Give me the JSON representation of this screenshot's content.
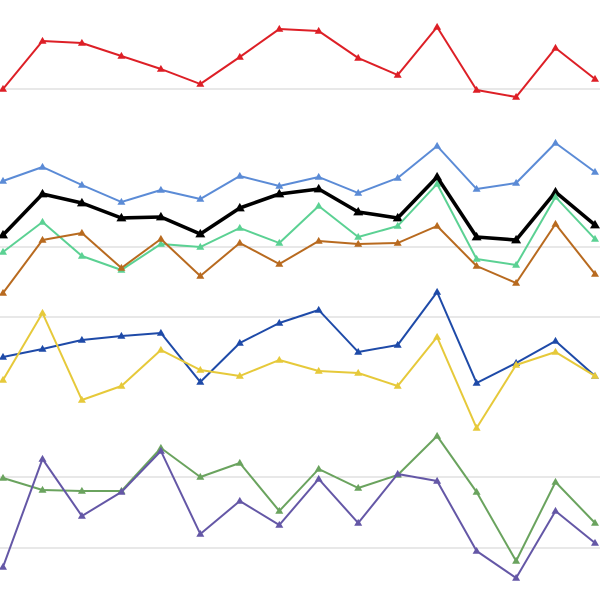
{
  "chart_data": {
    "type": "line",
    "title": "",
    "xlabel": "",
    "ylabel": "",
    "grid": true,
    "legend": "none",
    "marker": "triangle",
    "x": [
      1,
      2,
      3,
      4,
      5,
      6,
      7,
      8,
      9,
      10,
      11,
      12,
      13,
      14,
      15,
      16
    ],
    "xlim": [
      1,
      16
    ],
    "ylim": [
      0,
      600
    ],
    "y_inverted": true,
    "gridlines": [
      89,
      247,
      317,
      477,
      548
    ],
    "series": [
      {
        "color": "#dd1f26",
        "bold": false,
        "values": [
          89,
          41,
          43,
          56,
          69,
          84,
          57,
          29,
          31,
          58,
          75,
          27,
          90,
          97,
          48,
          79
        ]
      },
      {
        "color": "#5b8bd6",
        "bold": false,
        "values": [
          181,
          167,
          185,
          202,
          190,
          199,
          176,
          186,
          177,
          193,
          178,
          146,
          189,
          183,
          143,
          172
        ]
      },
      {
        "color": "#000000",
        "bold": true,
        "values": [
          235,
          194,
          203,
          218,
          217,
          234,
          208,
          194,
          189,
          212,
          218,
          177,
          237,
          240,
          192,
          225
        ]
      },
      {
        "color": "#5bd193",
        "bold": false,
        "values": [
          252,
          222,
          256,
          270,
          244,
          247,
          228,
          243,
          206,
          237,
          226,
          184,
          259,
          265,
          197,
          239
        ]
      },
      {
        "color": "#b86a1f",
        "bold": false,
        "values": [
          293,
          240,
          233,
          268,
          239,
          276,
          243,
          264,
          241,
          244,
          243,
          226,
          266,
          283,
          224,
          274
        ]
      },
      {
        "color": "#1e4aa8",
        "bold": false,
        "values": [
          357,
          349,
          340,
          336,
          333,
          382,
          343,
          323,
          310,
          352,
          345,
          292,
          383,
          363,
          341,
          376
        ]
      },
      {
        "color": "#e6c93a",
        "bold": false,
        "values": [
          380,
          313,
          400,
          386,
          350,
          370,
          376,
          360,
          371,
          373,
          386,
          337,
          428,
          365,
          352,
          376
        ]
      },
      {
        "color": "#6aa35e",
        "bold": false,
        "values": [
          478,
          490,
          491,
          491,
          448,
          477,
          463,
          511,
          469,
          488,
          475,
          436,
          492,
          561,
          482,
          523
        ]
      },
      {
        "color": "#6457a6",
        "bold": false,
        "values": [
          567,
          459,
          516,
          492,
          451,
          534,
          501,
          525,
          479,
          523,
          474,
          481,
          551,
          578,
          511,
          543
        ]
      }
    ]
  }
}
